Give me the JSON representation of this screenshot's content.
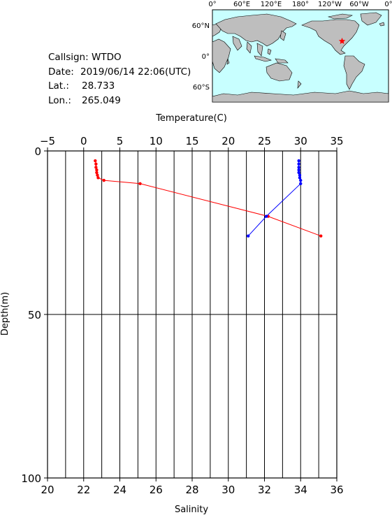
{
  "info": {
    "callsign_label": "Callsign:",
    "callsign": "WTDO",
    "date_label": "Date:",
    "date": "2019/06/14 22:06(UTC)",
    "lat_label": "Lat.:",
    "lat": "28.733",
    "lon_label": "Lon.:",
    "lon": "265.049"
  },
  "map": {
    "lon_ticks": [
      "0°",
      "60°E",
      "120°E",
      "180°",
      "120°W",
      "60°W",
      "0°"
    ],
    "lat_ticks": [
      "60°N",
      "0°",
      "60°S"
    ],
    "ocean_color": "#c8ffff",
    "land_color": "#bebebe",
    "marker_color": "#ff0000",
    "marker": {
      "lon": 265.049,
      "lat": 28.733
    }
  },
  "chart_data": {
    "type": "line",
    "ylabel": "Depth(m)",
    "ylim": [
      0,
      100
    ],
    "y_reversed": true,
    "y_ticks": [
      0,
      50,
      100
    ],
    "top_axis": {
      "label": "Temperature(C)",
      "lim": [
        -5,
        35
      ],
      "ticks": [
        -5,
        0,
        5,
        10,
        15,
        20,
        25,
        30,
        35
      ]
    },
    "bottom_axis": {
      "label": "Salinity",
      "lim": [
        20,
        36
      ],
      "ticks": [
        20,
        22,
        24,
        26,
        28,
        30,
        32,
        34,
        36
      ]
    },
    "grid": true,
    "series": [
      {
        "axis": "top",
        "color": "#ff0000",
        "x": [
          1.6,
          1.7,
          1.7,
          1.8,
          1.8,
          1.9,
          2.0,
          2.8,
          7.8,
          25.5,
          32.8
        ],
        "depth": [
          3,
          4,
          5,
          5.8,
          6.6,
          7.4,
          8.2,
          9,
          10,
          20,
          26
        ]
      },
      {
        "axis": "bottom",
        "color": "#0000ff",
        "x": [
          33.9,
          33.9,
          33.9,
          33.9,
          33.9,
          33.95,
          33.95,
          34.0,
          34.0,
          32.1,
          31.1
        ],
        "depth": [
          3,
          4,
          5,
          5.8,
          6.6,
          7.4,
          8.2,
          9,
          10,
          20,
          26
        ]
      }
    ]
  }
}
